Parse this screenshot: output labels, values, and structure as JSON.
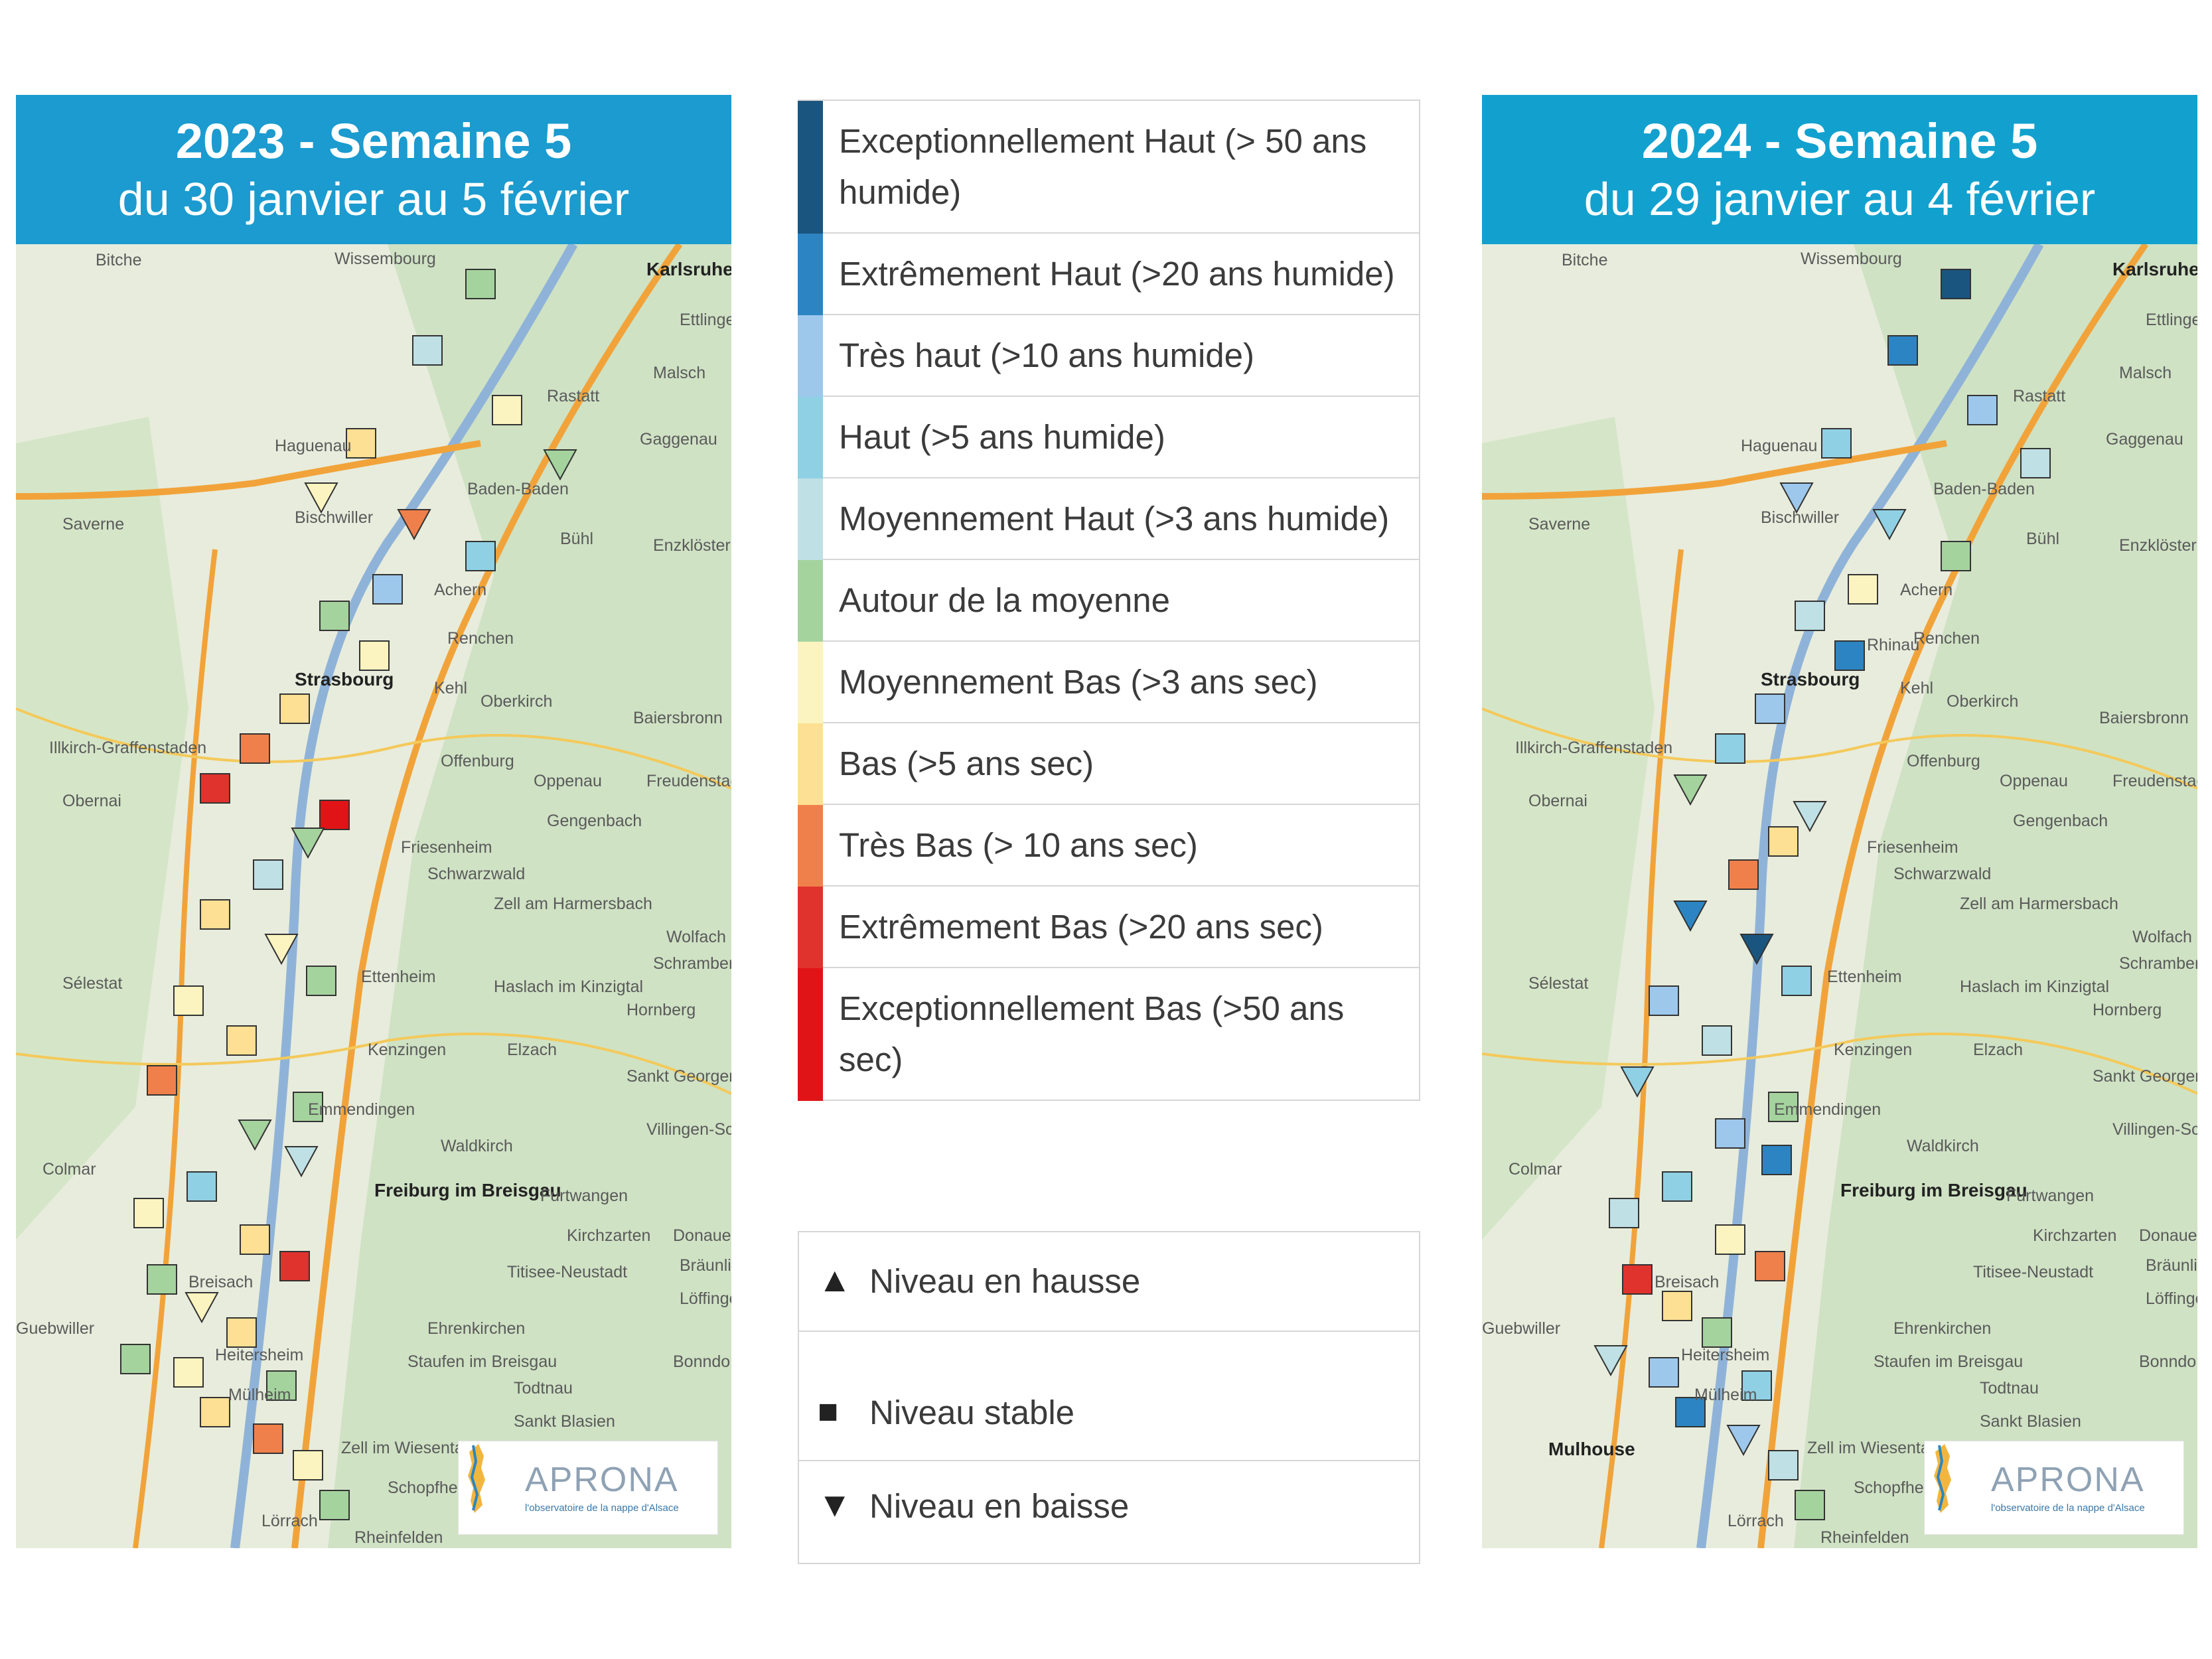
{
  "maps": [
    {
      "id": "2023",
      "title": "2023 - Semaine 5",
      "subtitle": "du 30 janvier au 5 février",
      "header_color": "#1b9bcf",
      "places": [
        "Bitche",
        "Wissembourg",
        "Karlsruhe",
        "Ettlingen",
        "Malsch",
        "Rastatt",
        "Gaggenau",
        "Haguenau",
        "Baden-Baden",
        "Saverne",
        "Bischwiller",
        "Bühl",
        "Enzklösterle",
        "Achern",
        "Renchen",
        "Strasbourg",
        "Kehl",
        "Oberkirch",
        "Baiersbronn",
        "Illkirch-Graffenstaden",
        "Oppenau",
        "Freudenstadt",
        "Offenburg",
        "Obernai",
        "Gengenbach",
        "Friesenheim",
        "Schwarzwald",
        "Zell am Harmersbach",
        "Wolfach",
        "Schramberg",
        "Sélestat",
        "Ettenheim",
        "Haslach im Kinzigtal",
        "Hornberg",
        "Kenzingen",
        "Elzach",
        "Sankt Georgen",
        "Emmendingen",
        "Waldkirch",
        "Villingen-Schwenningen",
        "Colmar",
        "Freiburg im Breisgau",
        "Furtwangen",
        "Kirchzarten",
        "Donaueschingen",
        "Titisee-Neustadt",
        "Bräunlingen",
        "Breisach",
        "Löffingen",
        "Guebwiller",
        "Ehrenkirchen",
        "Heitersheim",
        "Staufen im Breisgau",
        "Bonndorf",
        "Mülheim",
        "Todtnau",
        "Sankt Blasien",
        "Zell im Wiesental",
        "Schopfheim",
        "Lörrach",
        "Rheinfelden"
      ],
      "stations": [
        [
          "moyenne",
          "stable"
        ],
        [
          "moyennement_haut",
          "stable"
        ],
        [
          "moyennement_bas",
          "stable"
        ],
        [
          "bas",
          "stable"
        ],
        [
          "moyenne",
          "baisse"
        ],
        [
          "moyennement_bas",
          "baisse"
        ],
        [
          "tres_bas",
          "baisse"
        ],
        [
          "haut",
          "stable"
        ],
        [
          "tres_haut",
          "stable"
        ],
        [
          "moyenne",
          "stable"
        ],
        [
          "moyennement_bas",
          "stable"
        ],
        [
          "bas",
          "stable"
        ],
        [
          "tres_bas",
          "stable"
        ],
        [
          "extremement_bas",
          "stable"
        ],
        [
          "exceptionnellement_bas",
          "stable"
        ],
        [
          "moyenne",
          "baisse"
        ],
        [
          "moyennement_haut",
          "stable"
        ],
        [
          "bas",
          "stable"
        ],
        [
          "moyennement_bas",
          "baisse"
        ],
        [
          "moyenne",
          "stable"
        ],
        [
          "moyennement_bas",
          "stable"
        ],
        [
          "bas",
          "stable"
        ],
        [
          "tres_bas",
          "stable"
        ],
        [
          "moyenne",
          "stable"
        ],
        [
          "moyenne",
          "baisse"
        ],
        [
          "moyennement_haut",
          "baisse"
        ],
        [
          "haut",
          "stable"
        ],
        [
          "moyennement_bas",
          "stable"
        ],
        [
          "bas",
          "stable"
        ],
        [
          "extremement_bas",
          "stable"
        ],
        [
          "moyenne",
          "stable"
        ],
        [
          "moyennement_bas",
          "baisse"
        ],
        [
          "bas",
          "stable"
        ],
        [
          "moyenne",
          "stable"
        ],
        [
          "moyennement_bas",
          "stable"
        ],
        [
          "moyenne",
          "stable"
        ],
        [
          "bas",
          "stable"
        ],
        [
          "tres_bas",
          "stable"
        ],
        [
          "moyennement_bas",
          "stable"
        ],
        [
          "moyenne",
          "stable"
        ]
      ]
    },
    {
      "id": "2024",
      "title": "2024 - Semaine 5",
      "subtitle": "du 29 janvier au 4 février",
      "header_color": "#12a1cf",
      "places": [
        "Bitche",
        "Wissembourg",
        "Karlsruhe",
        "Ettlingen",
        "Malsch",
        "Rastatt",
        "Gaggenau",
        "Haguenau",
        "Baden-Baden",
        "Saverne",
        "Bischwiller",
        "Bühl",
        "Enzklösterle",
        "Rhinau",
        "Achern",
        "Renchen",
        "Strasbourg",
        "Kehl",
        "Oberkirch",
        "Baiersbronn",
        "Illkirch-Graffenstaden",
        "Oppenau",
        "Freudenstadt",
        "Offenburg",
        "Obernai",
        "Gengenbach",
        "Friesenheim",
        "Schwarzwald",
        "Zell am Harmersbach",
        "Wolfach",
        "Schramberg",
        "Sélestat",
        "Ettenheim",
        "Haslach im Kinzigtal",
        "Hornberg",
        "Kenzingen",
        "Elzach",
        "Sankt Georgen",
        "Emmendingen",
        "Waldkirch",
        "Villingen-Schwenningen",
        "Colmar",
        "Freiburg im Breisgau",
        "Furtwangen",
        "Kirchzarten",
        "Donaueschingen",
        "Titisee-Neustadt",
        "Bräunlingen",
        "Breisach",
        "Löffingen",
        "Guebwiller",
        "Ehrenkirchen",
        "Heitersheim",
        "Staufen im Breisgau",
        "Bonndorf",
        "Mülheim",
        "Mulhouse",
        "Todtnau",
        "Sankt Blasien",
        "Zell im Wiesental",
        "Schopfheim",
        "Lörrach",
        "Rheinfelden"
      ],
      "stations": [
        [
          "exceptionnellement_haut",
          "stable"
        ],
        [
          "extremement_haut",
          "stable"
        ],
        [
          "tres_haut",
          "stable"
        ],
        [
          "haut",
          "stable"
        ],
        [
          "moyennement_haut",
          "stable"
        ],
        [
          "tres_haut",
          "baisse"
        ],
        [
          "haut",
          "baisse"
        ],
        [
          "moyenne",
          "stable"
        ],
        [
          "moyennement_bas",
          "stable"
        ],
        [
          "moyennement_haut",
          "stable"
        ],
        [
          "extremement_haut",
          "stable"
        ],
        [
          "tres_haut",
          "stable"
        ],
        [
          "haut",
          "stable"
        ],
        [
          "moyenne",
          "baisse"
        ],
        [
          "moyennement_haut",
          "baisse"
        ],
        [
          "bas",
          "stable"
        ],
        [
          "tres_bas",
          "stable"
        ],
        [
          "extremement_haut",
          "baisse"
        ],
        [
          "exceptionnellement_haut",
          "baisse"
        ],
        [
          "haut",
          "stable"
        ],
        [
          "tres_haut",
          "stable"
        ],
        [
          "moyennement_haut",
          "stable"
        ],
        [
          "haut",
          "baisse"
        ],
        [
          "moyenne",
          "stable"
        ],
        [
          "tres_haut",
          "stable"
        ],
        [
          "extremement_haut",
          "stable"
        ],
        [
          "haut",
          "stable"
        ],
        [
          "moyennement_haut",
          "stable"
        ],
        [
          "moyennement_bas",
          "stable"
        ],
        [
          "tres_bas",
          "stable"
        ],
        [
          "extremement_bas",
          "stable"
        ],
        [
          "bas",
          "stable"
        ],
        [
          "moyenne",
          "stable"
        ],
        [
          "moyennement_haut",
          "baisse"
        ],
        [
          "tres_haut",
          "stable"
        ],
        [
          "haut",
          "stable"
        ],
        [
          "extremement_haut",
          "stable"
        ],
        [
          "tres_haut",
          "baisse"
        ],
        [
          "moyennement_haut",
          "stable"
        ],
        [
          "moyenne",
          "stable"
        ]
      ]
    }
  ],
  "logo": {
    "name": "APRONA",
    "tagline": "l'observatoire de la nappe d'Alsace"
  },
  "legend": [
    {
      "key": "exceptionnellement_haut",
      "label": "Exceptionnellement Haut (> 50 ans humide)",
      "color": "#1a557f"
    },
    {
      "key": "extremement_haut",
      "label": "Extrêmement Haut (>20 ans humide)",
      "color": "#2c85c2"
    },
    {
      "key": "tres_haut",
      "label": "Très haut (>10 ans humide)",
      "color": "#9dc8ec"
    },
    {
      "key": "haut",
      "label": "Haut (>5 ans humide)",
      "color": "#8fd0e4"
    },
    {
      "key": "moyennement_haut",
      "label": "Moyennement Haut (>3 ans humide)",
      "color": "#bfe0e4"
    },
    {
      "key": "moyenne",
      "label": "Autour de la moyenne",
      "color": "#a5d39e"
    },
    {
      "key": "moyennement_bas",
      "label": "Moyennement Bas (>3 ans sec)",
      "color": "#fbf4c0"
    },
    {
      "key": "bas",
      "label": "Bas (>5 ans sec)",
      "color": "#fde093"
    },
    {
      "key": "tres_bas",
      "label": "Très Bas (> 10 ans sec)",
      "color": "#f0804b"
    },
    {
      "key": "extremement_bas",
      "label": "Extrêmement Bas (>20 ans sec)",
      "color": "#e0332d"
    },
    {
      "key": "exceptionnellement_bas",
      "label": "Exceptionnellement Bas (>50 ans sec)",
      "color": "#e01417"
    }
  ],
  "trend_legend": [
    {
      "key": "hausse",
      "icon": "triangle-up-icon",
      "glyph": "▲",
      "label": "Niveau en hausse"
    },
    {
      "key": "stable",
      "icon": "square-icon",
      "glyph": "■",
      "label": "Niveau stable"
    },
    {
      "key": "baisse",
      "icon": "triangle-down-icon",
      "glyph": "▼",
      "label": "Niveau en baisse"
    }
  ]
}
